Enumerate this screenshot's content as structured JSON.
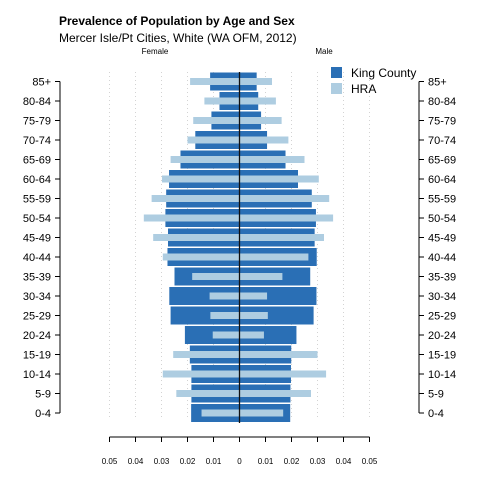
{
  "chart_data": {
    "type": "bar",
    "orientation": "horizontal",
    "layout": "population-pyramid",
    "title": "Prevalence of Population by Age and Sex",
    "subtitle": "Mercer Isle/Pt Cities, White (WA OFM, 2012)",
    "sides": {
      "left": "Female",
      "right": "Male"
    },
    "categories": [
      "0-4",
      "5-9",
      "10-14",
      "15-19",
      "20-24",
      "25-29",
      "30-34",
      "35-39",
      "40-44",
      "45-49",
      "50-54",
      "55-59",
      "60-64",
      "65-69",
      "70-74",
      "75-79",
      "80-84",
      "85+"
    ],
    "xlim": [
      -0.05,
      0.05
    ],
    "xticks": [
      -0.05,
      -0.04,
      -0.03,
      -0.02,
      -0.01,
      0,
      0.01,
      0.02,
      0.03,
      0.04,
      0.05
    ],
    "xtick_labels": [
      "0.05",
      "0.04",
      "0.03",
      "0.02",
      "0.01",
      "0",
      "0.01",
      "0.02",
      "0.03",
      "0.04",
      "0.05"
    ],
    "grid": true,
    "legend_position": "top-right",
    "series": [
      {
        "name": "King County",
        "color": "#2a6fb5",
        "female": [
          0.0186,
          0.0185,
          0.0185,
          0.0191,
          0.021,
          0.0265,
          0.027,
          0.025,
          0.0277,
          0.0275,
          0.0285,
          0.0282,
          0.0271,
          0.0227,
          0.017,
          0.0108,
          0.0077,
          0.0113
        ],
        "male": [
          0.0195,
          0.0196,
          0.0198,
          0.0199,
          0.0219,
          0.0285,
          0.0296,
          0.0272,
          0.0297,
          0.0289,
          0.0294,
          0.0278,
          0.0225,
          0.0177,
          0.0106,
          0.0083,
          0.0072,
          0.0066
        ]
      },
      {
        "name": "HRA",
        "color": "#aecde1",
        "female": [
          0.0146,
          0.0243,
          0.0295,
          0.0255,
          0.0103,
          0.0112,
          0.0115,
          0.0182,
          0.0295,
          0.0332,
          0.0368,
          0.0338,
          0.0298,
          0.0265,
          0.02,
          0.0178,
          0.0135,
          0.019
        ],
        "male": [
          0.0168,
          0.0275,
          0.0333,
          0.03,
          0.0094,
          0.0109,
          0.0106,
          0.0165,
          0.0265,
          0.0325,
          0.036,
          0.0345,
          0.0305,
          0.025,
          0.0188,
          0.0162,
          0.014,
          0.0125
        ]
      }
    ]
  }
}
